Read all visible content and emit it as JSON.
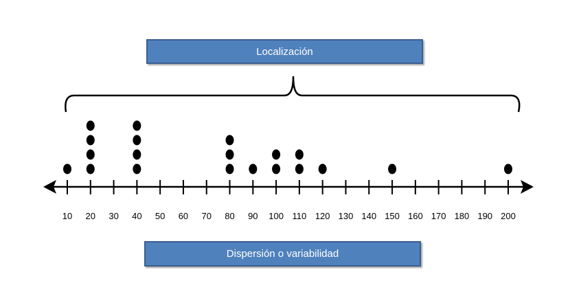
{
  "labels": {
    "top": "Localización",
    "bottom": "Dispersión o variabilidad"
  },
  "colors": {
    "box_fill": "#4f81bd",
    "ink": "#000000"
  },
  "axis": {
    "ticks": [
      10,
      20,
      30,
      40,
      50,
      60,
      70,
      80,
      90,
      100,
      110,
      120,
      130,
      140,
      150,
      160,
      170,
      180,
      190,
      200
    ],
    "range": [
      10,
      200
    ],
    "arrows": "both"
  },
  "chart_data": {
    "type": "dot-plot",
    "points": [
      {
        "x": 10,
        "count": 1
      },
      {
        "x": 20,
        "count": 4
      },
      {
        "x": 40,
        "count": 4
      },
      {
        "x": 80,
        "count": 3
      },
      {
        "x": 90,
        "count": 1
      },
      {
        "x": 100,
        "count": 2
      },
      {
        "x": 110,
        "count": 2
      },
      {
        "x": 120,
        "count": 1
      },
      {
        "x": 150,
        "count": 1
      },
      {
        "x": 200,
        "count": 1
      }
    ]
  }
}
